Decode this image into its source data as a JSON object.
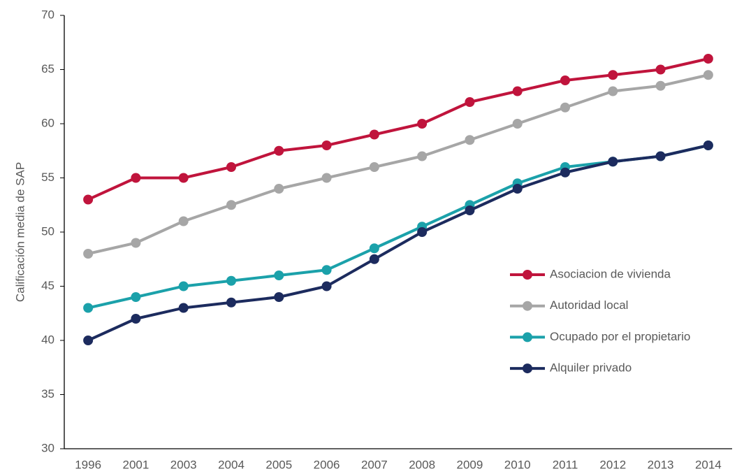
{
  "chart_data": {
    "type": "line",
    "y_label": "Calificación media de SAP",
    "categories": [
      "1996",
      "2001",
      "2003",
      "2004",
      "2005",
      "2006",
      "2007",
      "2008",
      "2009",
      "2010",
      "2011",
      "2012",
      "2013",
      "2014"
    ],
    "series": [
      {
        "name": "Asociacion de vivienda",
        "color": "#c0143c",
        "values": [
          53,
          55,
          55,
          56,
          57.5,
          58,
          59,
          60,
          62,
          63,
          64,
          64.5,
          65,
          66
        ]
      },
      {
        "name": "Autoridad local",
        "color": "#a6a6a6",
        "values": [
          48,
          49,
          51,
          52.5,
          54,
          55,
          56,
          57,
          58.5,
          60,
          61.5,
          63,
          63.5,
          64.5
        ]
      },
      {
        "name": "Ocupado por el propietario",
        "color": "#1ba1aa",
        "values": [
          43,
          44,
          45,
          45.5,
          46,
          46.5,
          48.5,
          50.5,
          52.5,
          54.5,
          56,
          56.5,
          57,
          58
        ]
      },
      {
        "name": "Alquiler privado",
        "color": "#1c2b5e",
        "values": [
          40,
          42,
          43,
          43.5,
          44,
          45,
          47.5,
          50,
          52,
          54,
          55.5,
          56.5,
          57,
          58
        ]
      }
    ],
    "ylim": [
      30,
      70
    ],
    "yticks": [
      30,
      35,
      40,
      45,
      50,
      55,
      60,
      65,
      70
    ],
    "grid": false,
    "legend": "right"
  }
}
